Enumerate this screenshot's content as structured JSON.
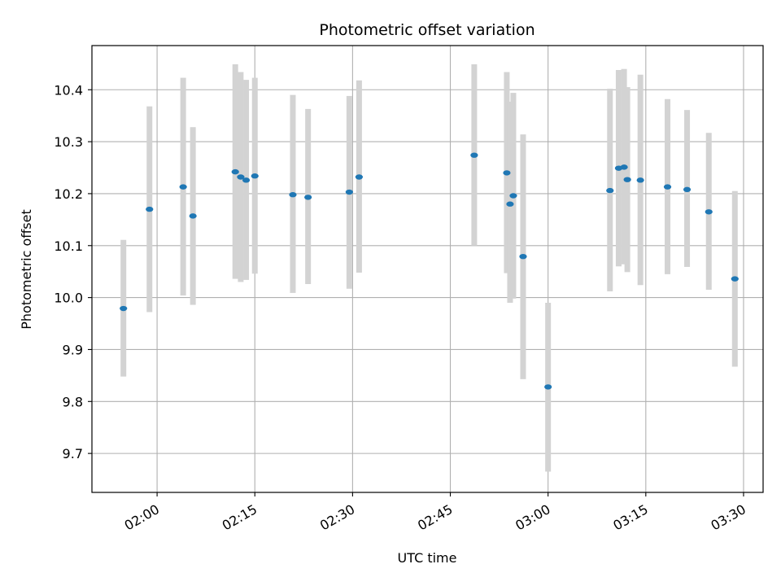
{
  "chart_data": {
    "type": "scatter",
    "title": "Photometric offset variation",
    "xlabel": "UTC time",
    "ylabel": "Photometric offset",
    "xlim": [
      "01:50",
      "03:33"
    ],
    "ylim": [
      9.625,
      10.485
    ],
    "x_ticks": [
      "02:00",
      "02:15",
      "02:30",
      "02:45",
      "03:00",
      "03:15",
      "03:30"
    ],
    "y_ticks": [
      "9.7",
      "9.8",
      "9.9",
      "10.0",
      "10.1",
      "10.2",
      "10.3",
      "10.4"
    ],
    "grid": true,
    "colors": {
      "point": "#1f77b4",
      "errorbar": "#d3d3d3",
      "grid": "#b0b0b0"
    },
    "points": [
      {
        "time": "01:54:50",
        "y": 9.979,
        "low": 9.848,
        "high": 10.111
      },
      {
        "time": "01:58:50",
        "y": 10.17,
        "low": 9.972,
        "high": 10.368
      },
      {
        "time": "02:04:00",
        "y": 10.213,
        "low": 10.004,
        "high": 10.423
      },
      {
        "time": "02:05:30",
        "y": 10.157,
        "low": 9.986,
        "high": 10.328
      },
      {
        "time": "02:12:00",
        "y": 10.242,
        "low": 10.036,
        "high": 10.449
      },
      {
        "time": "02:12:50",
        "y": 10.232,
        "low": 10.03,
        "high": 10.434
      },
      {
        "time": "02:13:40",
        "y": 10.226,
        "low": 10.034,
        "high": 10.419
      },
      {
        "time": "02:15:00",
        "y": 10.234,
        "low": 10.046,
        "high": 10.423
      },
      {
        "time": "02:20:50",
        "y": 10.198,
        "low": 10.009,
        "high": 10.39
      },
      {
        "time": "02:23:10",
        "y": 10.193,
        "low": 10.026,
        "high": 10.363
      },
      {
        "time": "02:29:30",
        "y": 10.203,
        "low": 10.017,
        "high": 10.388
      },
      {
        "time": "02:31:00",
        "y": 10.232,
        "low": 10.048,
        "high": 10.418
      },
      {
        "time": "02:48:40",
        "y": 10.274,
        "low": 10.1,
        "high": 10.449
      },
      {
        "time": "02:53:40",
        "y": 10.24,
        "low": 10.047,
        "high": 10.434
      },
      {
        "time": "02:54:10",
        "y": 10.18,
        "low": 9.99,
        "high": 10.377
      },
      {
        "time": "02:54:40",
        "y": 10.196,
        "low": 9.998,
        "high": 10.394
      },
      {
        "time": "02:56:10",
        "y": 10.079,
        "low": 9.843,
        "high": 10.314
      },
      {
        "time": "03:00:00",
        "y": 9.828,
        "low": 9.665,
        "high": 9.99
      },
      {
        "time": "03:09:30",
        "y": 10.206,
        "low": 10.012,
        "high": 10.402
      },
      {
        "time": "03:10:50",
        "y": 10.249,
        "low": 10.06,
        "high": 10.438
      },
      {
        "time": "03:11:40",
        "y": 10.251,
        "low": 10.064,
        "high": 10.44
      },
      {
        "time": "03:12:10",
        "y": 10.227,
        "low": 10.049,
        "high": 10.405
      },
      {
        "time": "03:14:10",
        "y": 10.226,
        "low": 10.024,
        "high": 10.429
      },
      {
        "time": "03:18:20",
        "y": 10.213,
        "low": 10.045,
        "high": 10.382
      },
      {
        "time": "03:21:20",
        "y": 10.208,
        "low": 10.059,
        "high": 10.361
      },
      {
        "time": "03:24:40",
        "y": 10.165,
        "low": 10.015,
        "high": 10.317
      },
      {
        "time": "03:28:40",
        "y": 10.036,
        "low": 9.867,
        "high": 10.205
      }
    ]
  }
}
